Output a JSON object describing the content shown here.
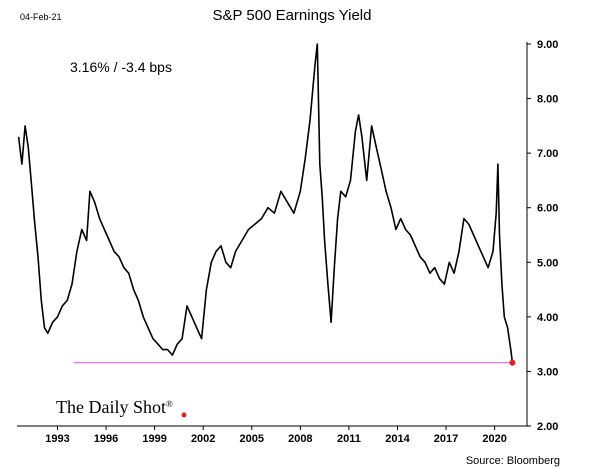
{
  "date_label": "04-Feb-21",
  "brand": "The Daily Shot",
  "brand_mark": "®",
  "chart_data": {
    "type": "line",
    "title": "S&P 500 Earnings Yield",
    "annotation": "3.16%  /  -3.4 bps",
    "source": "Source: Bloomberg",
    "xlabel": "",
    "ylabel": "",
    "xlim": [
      1990.5,
      2022.0
    ],
    "ylim": [
      2.0,
      9.0
    ],
    "x_ticks": [
      1993,
      1996,
      1999,
      2002,
      2005,
      2008,
      2011,
      2014,
      2017,
      2020
    ],
    "y_ticks": [
      2.0,
      3.0,
      4.0,
      5.0,
      6.0,
      7.0,
      8.0,
      9.0
    ],
    "y_tick_labels": [
      "2.00",
      "3.00",
      "4.00",
      "5.00",
      "6.00",
      "7.00",
      "8.00",
      "9.00"
    ],
    "grid": false,
    "reference_line": {
      "y": 3.16,
      "x_start": 1994.0,
      "x_end": 2021.1,
      "color": "#e066e0"
    },
    "last_point": {
      "x": 2021.1,
      "y": 3.16,
      "color": "#e02020"
    },
    "series": [
      {
        "color": "#000000",
        "x": [
          1990.6,
          1990.8,
          1991.0,
          1991.2,
          1991.4,
          1991.6,
          1991.8,
          1992.0,
          1992.2,
          1992.4,
          1992.7,
          1993.0,
          1993.3,
          1993.6,
          1993.9,
          1994.2,
          1994.5,
          1994.8,
          1995.0,
          1995.3,
          1995.6,
          1995.9,
          1996.2,
          1996.5,
          1996.8,
          1997.1,
          1997.4,
          1997.7,
          1998.0,
          1998.3,
          1998.6,
          1998.9,
          1999.2,
          1999.5,
          1999.8,
          2000.1,
          2000.4,
          2000.7,
          2001.0,
          2001.3,
          2001.6,
          2001.9,
          2002.2,
          2002.5,
          2002.8,
          2003.1,
          2003.4,
          2003.7,
          2004.0,
          2004.4,
          2004.8,
          2005.2,
          2005.6,
          2006.0,
          2006.4,
          2006.8,
          2007.2,
          2007.6,
          2008.0,
          2008.3,
          2008.6,
          2008.9,
          2009.05,
          2009.2,
          2009.35,
          2009.5,
          2009.7,
          2009.9,
          2010.1,
          2010.3,
          2010.5,
          2010.8,
          2011.1,
          2011.4,
          2011.6,
          2011.8,
          2012.1,
          2012.4,
          2012.7,
          2013.0,
          2013.3,
          2013.6,
          2013.9,
          2014.2,
          2014.5,
          2014.8,
          2015.1,
          2015.4,
          2015.7,
          2016.0,
          2016.3,
          2016.6,
          2016.9,
          2017.2,
          2017.5,
          2017.8,
          2018.1,
          2018.4,
          2018.7,
          2019.0,
          2019.3,
          2019.6,
          2019.9,
          2020.1,
          2020.2,
          2020.3,
          2020.45,
          2020.6,
          2020.8,
          2021.0,
          2021.1
        ],
        "y": [
          7.3,
          6.8,
          7.5,
          7.1,
          6.4,
          5.7,
          5.1,
          4.3,
          3.8,
          3.7,
          3.9,
          4.0,
          4.2,
          4.3,
          4.6,
          5.2,
          5.6,
          5.4,
          6.3,
          6.1,
          5.8,
          5.6,
          5.4,
          5.2,
          5.1,
          4.9,
          4.8,
          4.5,
          4.3,
          4.0,
          3.8,
          3.6,
          3.5,
          3.4,
          3.4,
          3.3,
          3.5,
          3.6,
          4.2,
          4.0,
          3.8,
          3.6,
          4.5,
          5.0,
          5.2,
          5.3,
          5.0,
          4.9,
          5.2,
          5.4,
          5.6,
          5.7,
          5.8,
          6.0,
          5.9,
          6.3,
          6.1,
          5.9,
          6.3,
          6.9,
          7.6,
          8.6,
          9.0,
          6.8,
          6.2,
          5.4,
          4.6,
          3.9,
          4.9,
          5.8,
          6.3,
          6.2,
          6.5,
          7.4,
          7.7,
          7.3,
          6.5,
          7.5,
          7.1,
          6.7,
          6.3,
          6.0,
          5.6,
          5.8,
          5.6,
          5.5,
          5.3,
          5.1,
          5.0,
          4.8,
          4.9,
          4.7,
          4.6,
          5.0,
          4.8,
          5.2,
          5.8,
          5.7,
          5.5,
          5.3,
          5.1,
          4.9,
          5.2,
          5.9,
          6.8,
          5.5,
          4.6,
          4.0,
          3.8,
          3.4,
          3.16
        ]
      }
    ]
  }
}
